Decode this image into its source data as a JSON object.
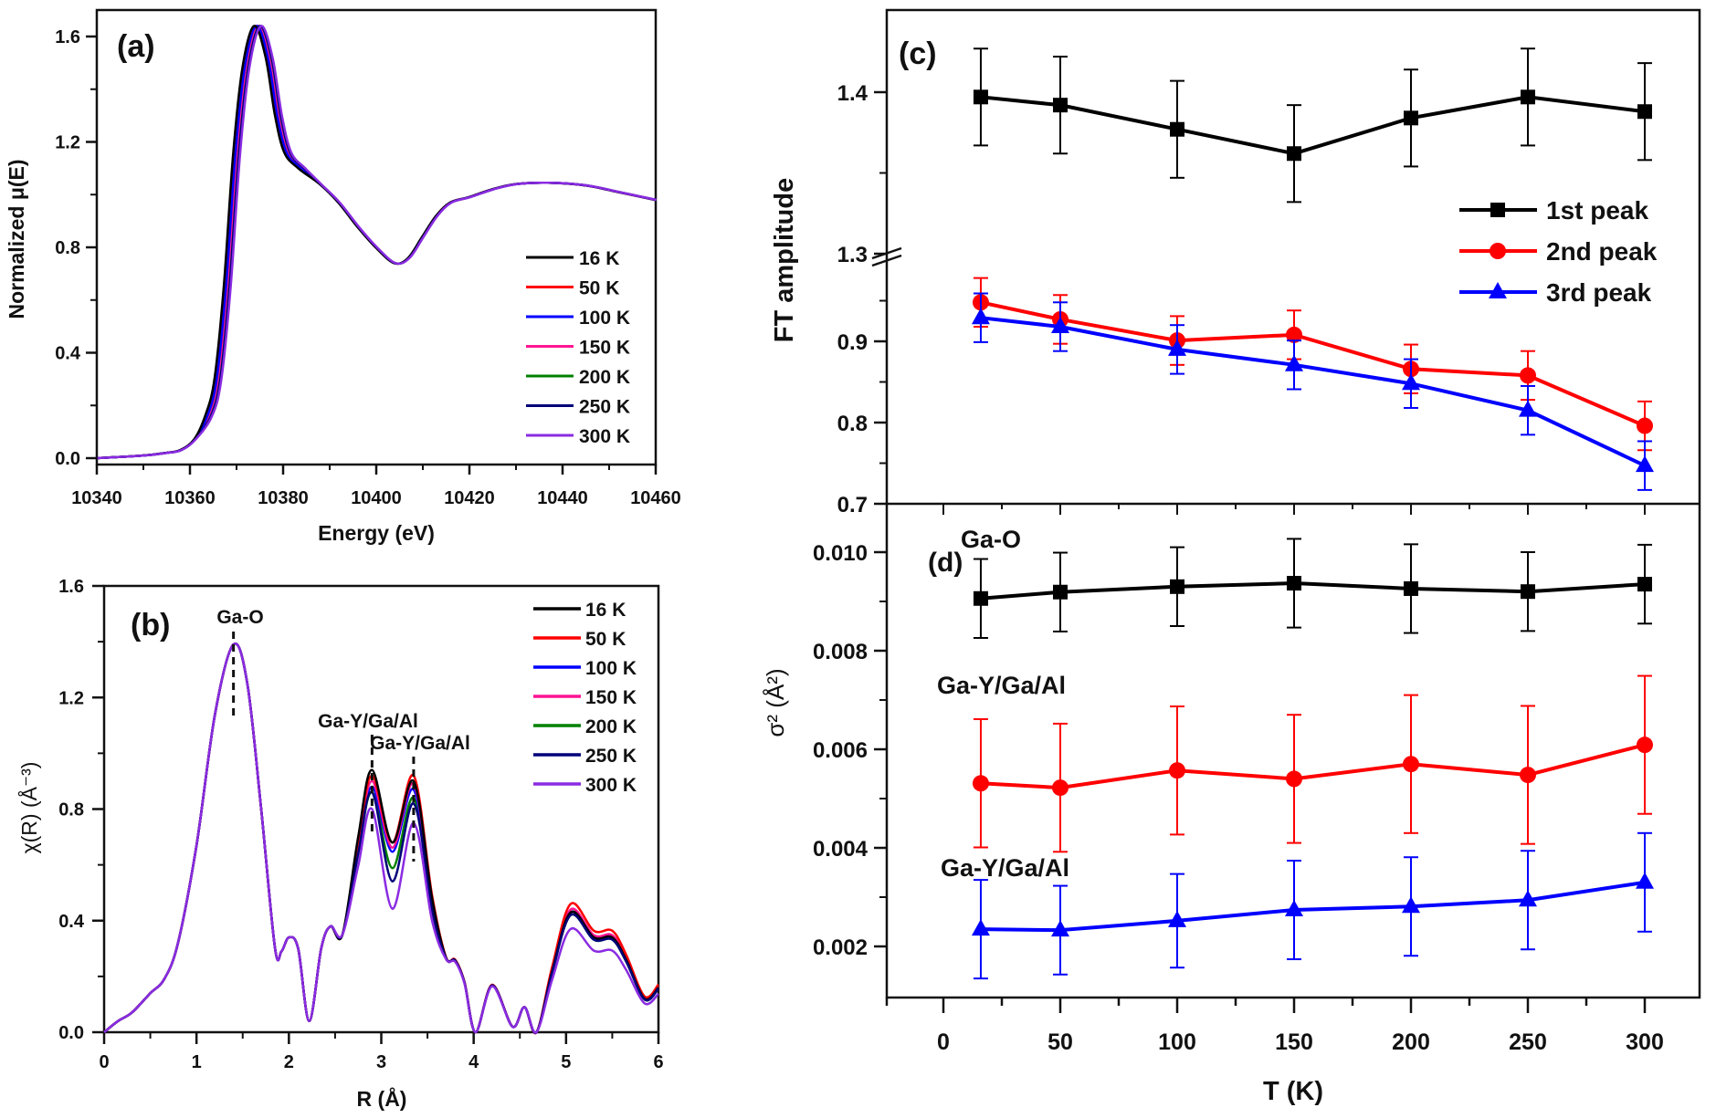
{
  "chart_data": [
    {
      "id": "a",
      "type": "line",
      "panel_label": "(a)",
      "xlabel": "Energy (eV)",
      "ylabel": "Normalized μ(E)",
      "xlim": [
        10340,
        10460
      ],
      "ylim": [
        0.0,
        1.7
      ],
      "xticks": [
        10340,
        10360,
        10380,
        10400,
        10420,
        10440,
        10460
      ],
      "yticks": [
        0.0,
        0.4,
        0.8,
        1.2,
        1.6
      ],
      "ytick_labels": [
        "0.0",
        "0.4",
        "0.8",
        "1.2",
        "1.6"
      ],
      "legend_position": "right-middle",
      "series": [
        {
          "name": "16 K",
          "color": "#000000"
        },
        {
          "name": "50 K",
          "color": "#ff0000"
        },
        {
          "name": "100 K",
          "color": "#0000ff"
        },
        {
          "name": "150 K",
          "color": "#ff1493"
        },
        {
          "name": "200 K",
          "color": "#008000"
        },
        {
          "name": "250 K",
          "color": "#00007a"
        },
        {
          "name": "300 K",
          "color": "#8a2be2"
        }
      ],
      "curve_x": [
        10340,
        10350,
        10355,
        10358,
        10361,
        10364,
        10366,
        10368,
        10370,
        10372,
        10374.5,
        10377,
        10379,
        10381,
        10384,
        10388,
        10392,
        10396,
        10400,
        10404,
        10407,
        10410,
        10413,
        10416,
        10420,
        10425,
        10430,
        10437,
        10445,
        10452,
        10460
      ],
      "curve_y": [
        0.0,
        0.01,
        0.02,
        0.03,
        0.07,
        0.16,
        0.3,
        0.65,
        1.15,
        1.48,
        1.64,
        1.52,
        1.3,
        1.16,
        1.1,
        1.04,
        0.97,
        0.88,
        0.8,
        0.74,
        0.76,
        0.84,
        0.92,
        0.97,
        0.99,
        1.02,
        1.04,
        1.045,
        1.035,
        1.01,
        0.98
      ]
    },
    {
      "id": "b",
      "type": "line",
      "panel_label": "(b)",
      "xlabel": "R (Å)",
      "ylabel": "χ(R) (Å⁻³)",
      "xlim": [
        0,
        6
      ],
      "ylim": [
        0.0,
        1.6
      ],
      "xticks": [
        0,
        1,
        2,
        3,
        4,
        5,
        6
      ],
      "yticks": [
        0.0,
        0.4,
        0.8,
        1.2,
        1.6
      ],
      "ytick_labels": [
        "0.0",
        "0.4",
        "0.8",
        "1.2",
        "1.6"
      ],
      "legend_position": "top-right",
      "annotations": [
        {
          "text": "Ga-O",
          "x": 1.4
        },
        {
          "text": "Ga-Y/Ga/Al",
          "x": 2.9
        },
        {
          "text": "Ga-Y/Ga/Al",
          "x": 3.35
        }
      ],
      "series": [
        {
          "name": "16 K",
          "color": "#000000",
          "peak2": 0.94,
          "peak3": 0.9,
          "far": 0.43
        },
        {
          "name": "50 K",
          "color": "#ff0000",
          "peak2": 0.92,
          "peak3": 0.92,
          "far": 0.46
        },
        {
          "name": "100 K",
          "color": "#0000ff",
          "peak2": 0.88,
          "peak3": 0.87,
          "far": 0.43
        },
        {
          "name": "150 K",
          "color": "#ff1493",
          "peak2": 0.9,
          "peak3": 0.89,
          "far": 0.44
        },
        {
          "name": "200 K",
          "color": "#008000",
          "peak2": 0.86,
          "peak3": 0.84,
          "far": 0.42
        },
        {
          "name": "250 K",
          "color": "#00007a",
          "peak2": 0.86,
          "peak3": 0.82,
          "far": 0.42
        },
        {
          "name": "300 K",
          "color": "#8a2be2",
          "peak2": 0.8,
          "peak3": 0.75,
          "far": 0.37
        }
      ],
      "curve_x": [
        0,
        0.15,
        0.3,
        0.5,
        0.65,
        0.8,
        1.0,
        1.2,
        1.4,
        1.55,
        1.7,
        1.85,
        1.92,
        2.0,
        2.1,
        2.22,
        2.35,
        2.45,
        2.58,
        2.75,
        2.9,
        3.12,
        3.35,
        3.55,
        3.7,
        3.8,
        3.9,
        4.02,
        4.2,
        4.42,
        4.55,
        4.68,
        4.85,
        5.05,
        5.3,
        5.5,
        5.65,
        5.85,
        6.0
      ],
      "curve_y_16K": [
        0.0,
        0.04,
        0.07,
        0.14,
        0.19,
        0.32,
        0.67,
        1.14,
        1.39,
        1.25,
        0.8,
        0.3,
        0.29,
        0.34,
        0.3,
        0.04,
        0.3,
        0.38,
        0.35,
        0.7,
        0.94,
        0.68,
        0.9,
        0.48,
        0.27,
        0.26,
        0.18,
        0.0,
        0.17,
        0.02,
        0.09,
        0.0,
        0.22,
        0.43,
        0.34,
        0.34,
        0.26,
        0.12,
        0.16
      ]
    },
    {
      "id": "c",
      "type": "line",
      "panel_label": "(c)",
      "xlabel": "",
      "ylabel": "FT amplitude",
      "x": [
        16,
        50,
        100,
        150,
        200,
        250,
        300
      ],
      "axis_break": {
        "lower_range": [
          0.7,
          1.0
        ],
        "upper_range": [
          1.3,
          1.45
        ]
      },
      "yticks": [
        0.7,
        0.8,
        0.9,
        1.3,
        1.4
      ],
      "ytick_labels": [
        "0.7",
        "0.8",
        "0.9",
        "1.3",
        "1.4"
      ],
      "legend_position": "right-middle",
      "series": [
        {
          "name": "1st peak",
          "color": "#000000",
          "marker": "square",
          "values": [
            1.397,
            1.392,
            1.377,
            1.362,
            1.384,
            1.397,
            1.388
          ],
          "error": [
            0.03,
            0.03,
            0.03,
            0.03,
            0.03,
            0.03,
            0.03
          ]
        },
        {
          "name": "2nd peak",
          "color": "#ff0000",
          "marker": "circle",
          "values": [
            0.948,
            0.927,
            0.901,
            0.908,
            0.866,
            0.858,
            0.796
          ],
          "error": [
            0.03,
            0.03,
            0.03,
            0.03,
            0.03,
            0.03,
            0.03
          ]
        },
        {
          "name": "3rd peak",
          "color": "#0000ff",
          "marker": "triangle",
          "values": [
            0.929,
            0.918,
            0.89,
            0.871,
            0.848,
            0.815,
            0.747
          ],
          "error": [
            0.03,
            0.03,
            0.03,
            0.03,
            0.03,
            0.03,
            0.03
          ]
        }
      ]
    },
    {
      "id": "d",
      "type": "line",
      "panel_label": "(d)",
      "xlabel": "T (K)",
      "ylabel": "σ² (Å²)",
      "x": [
        16,
        50,
        100,
        150,
        200,
        250,
        300
      ],
      "xlim": [
        -25,
        325
      ],
      "ylim": [
        0.001,
        0.011
      ],
      "xticks": [
        0,
        50,
        100,
        150,
        200,
        250,
        300
      ],
      "yticks": [
        0.002,
        0.004,
        0.006,
        0.008,
        0.01
      ],
      "ytick_labels": [
        "0.002",
        "0.004",
        "0.006",
        "0.008",
        "0.010"
      ],
      "annotations": [
        {
          "text": "Ga-O"
        },
        {
          "text": "Ga-Y/Ga/Al"
        },
        {
          "text": "Ga-Y/Ga/Al"
        }
      ],
      "series": [
        {
          "name": "Ga-O",
          "color": "#000000",
          "marker": "square",
          "values": [
            0.00906,
            0.00919,
            0.0093,
            0.00937,
            0.00926,
            0.0092,
            0.00935
          ],
          "error": [
            0.0008,
            0.0008,
            0.0008,
            0.0009,
            0.0009,
            0.0008,
            0.0008
          ]
        },
        {
          "name": "Ga-Y/Ga/Al (1)",
          "color": "#ff0000",
          "marker": "circle",
          "values": [
            0.00531,
            0.00522,
            0.00557,
            0.0054,
            0.0057,
            0.00548,
            0.00609
          ],
          "error": [
            0.0013,
            0.0013,
            0.0013,
            0.0013,
            0.0014,
            0.0014,
            0.0014
          ]
        },
        {
          "name": "Ga-Y/Ga/Al (2)",
          "color": "#0000ff",
          "marker": "triangle",
          "values": [
            0.00235,
            0.00233,
            0.00252,
            0.00274,
            0.00281,
            0.00294,
            0.0033
          ],
          "error": [
            0.001,
            0.0009,
            0.00095,
            0.001,
            0.001,
            0.001,
            0.001
          ]
        }
      ]
    }
  ]
}
